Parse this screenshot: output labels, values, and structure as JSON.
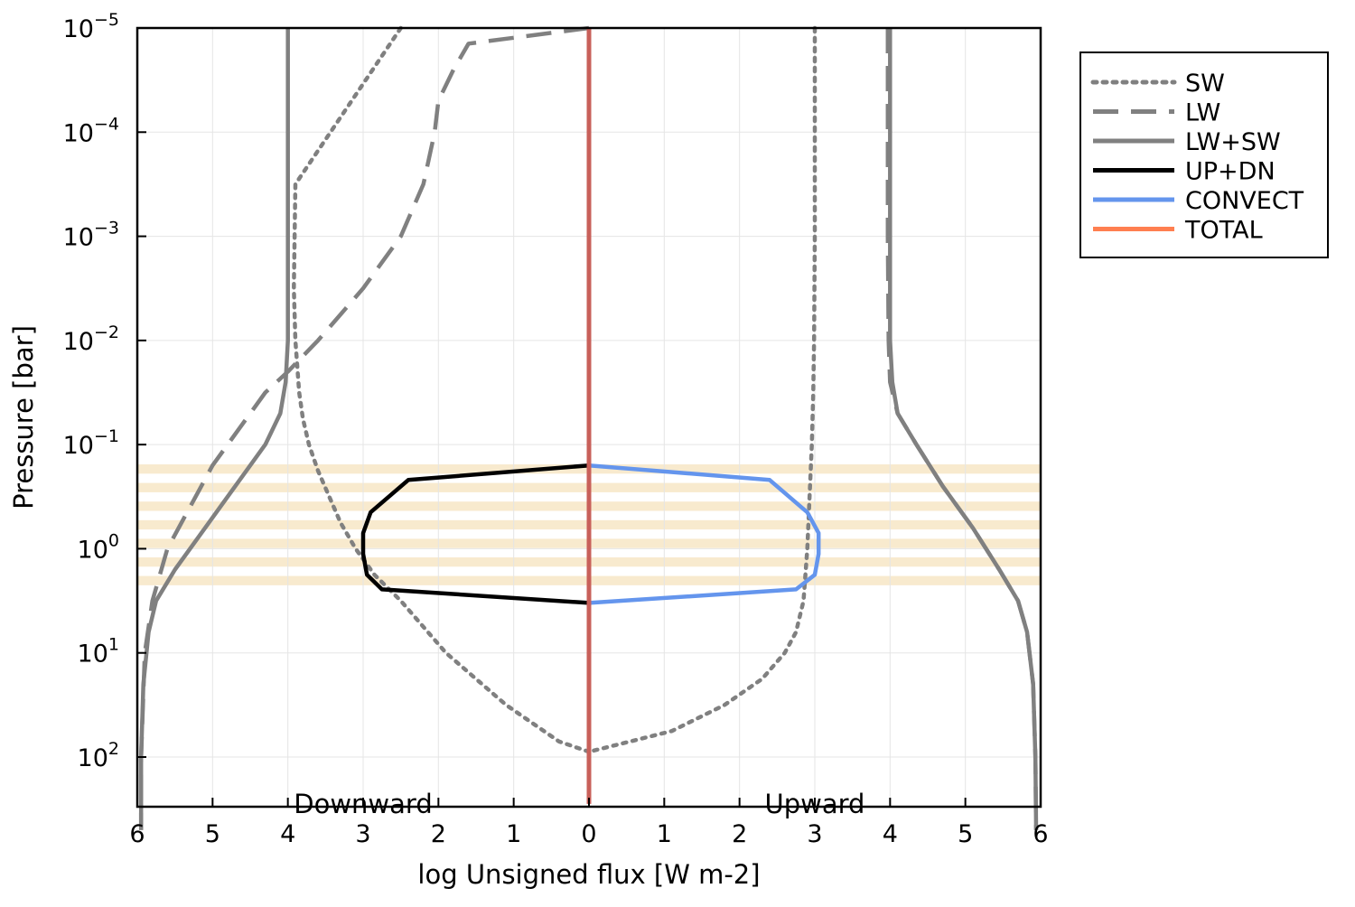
{
  "chart_data": {
    "type": "line",
    "xlabel": "log Unsigned flux [W m-2]",
    "ylabel": "Pressure [bar]",
    "x_scale": "signed-log (downward fluxes plotted to the left of 0, upward fluxes to the right)",
    "y_scale": "log, inverted",
    "xlim": [
      -6,
      6
    ],
    "ylim_bar": [
      1e-05,
      300
    ],
    "x_tick_labels": [
      "6",
      "5",
      "4",
      "3",
      "2",
      "1",
      "0",
      "1",
      "2",
      "3",
      "4",
      "5",
      "6"
    ],
    "x_tick_values": [
      -6,
      -5,
      -4,
      -3,
      -2,
      -1,
      0,
      1,
      2,
      3,
      4,
      5,
      6
    ],
    "y_ticks": [
      {
        "base": "10",
        "exp": "−5",
        "logp": -5
      },
      {
        "base": "10",
        "exp": "−4",
        "logp": -4
      },
      {
        "base": "10",
        "exp": "−3",
        "logp": -3
      },
      {
        "base": "10",
        "exp": "−2",
        "logp": -2
      },
      {
        "base": "10",
        "exp": "−1",
        "logp": -1
      },
      {
        "base": "10",
        "exp": "0",
        "logp": 0
      },
      {
        "base": "10",
        "exp": "1",
        "logp": 1
      },
      {
        "base": "10",
        "exp": "2",
        "logp": 2
      }
    ],
    "annotations": [
      {
        "text": "Downward",
        "x": -3.0,
        "logp": 2.45
      },
      {
        "text": "Upward",
        "x": 3.0,
        "logp": 2.45
      }
    ],
    "grid": true,
    "legend_position": "outside-top-right",
    "convective_band": {
      "logp_range": [
        -0.81,
        0.44
      ],
      "color": "#f5deb3"
    },
    "series": [
      {
        "name": "SW",
        "style": "dotted",
        "color": "#808080",
        "x": [
          -2.5,
          -3.9,
          -3.92,
          -3.9,
          -3.85,
          -3.8,
          -3.72,
          -3.6,
          -3.45,
          -3.3,
          -3.1,
          -2.85,
          -2.5,
          -1.9,
          -1.1,
          -0.4,
          0.0
        ],
        "logp": [
          -5,
          -3.5,
          -2.5,
          -2.0,
          -1.5,
          -1.25,
          -1.0,
          -0.75,
          -0.5,
          -0.25,
          0.0,
          0.25,
          0.5,
          1.0,
          1.5,
          1.85,
          1.95
        ],
        "x_upward": [
          3.0,
          3.0,
          2.99,
          2.98,
          2.96,
          2.93,
          2.9,
          2.85,
          2.75,
          2.6,
          2.3,
          1.8,
          1.1,
          0.0
        ],
        "logp_upward": [
          -5,
          -3.0,
          -2.0,
          -1.5,
          -1.0,
          -0.5,
          0.0,
          0.5,
          0.8,
          1.0,
          1.25,
          1.5,
          1.75,
          1.95
        ]
      },
      {
        "name": "LW",
        "style": "dashed",
        "color": "#808080",
        "x": [
          0.0,
          -1.6,
          -1.8,
          -2.0,
          -2.05,
          -2.2,
          -2.5,
          -3.0,
          -3.6,
          -4.0,
          -4.3,
          -4.6,
          -5.0,
          -5.3,
          -5.6,
          -5.8,
          -5.9,
          -5.95,
          -5.95
        ],
        "logp": [
          -5,
          -4.85,
          -4.6,
          -4.3,
          -4.0,
          -3.5,
          -3.0,
          -2.5,
          -2.0,
          -1.7,
          -1.5,
          -1.2,
          -0.8,
          -0.4,
          0.0,
          0.5,
          1.0,
          2.0,
          2.7
        ],
        "x_upward": [
          3.97,
          3.97,
          3.98,
          4.0,
          4.1,
          4.35,
          4.7,
          5.1,
          5.45,
          5.7,
          5.82,
          5.9,
          5.93,
          5.94
        ],
        "logp_upward": [
          -5,
          -3.0,
          -2.0,
          -1.6,
          -1.3,
          -1.0,
          -0.6,
          -0.2,
          0.2,
          0.5,
          0.8,
          1.3,
          2.0,
          2.7
        ]
      },
      {
        "name": "LW+SW",
        "style": "solid",
        "color": "#808080",
        "x": [
          -4.0,
          -4.0,
          -4.0,
          -4.03,
          -4.1,
          -4.3,
          -4.7,
          -5.1,
          -5.5,
          -5.75,
          -5.85,
          -5.92,
          -5.95,
          -5.95
        ],
        "logp": [
          -5,
          -3.0,
          -2.0,
          -1.6,
          -1.3,
          -1.0,
          -0.6,
          -0.2,
          0.2,
          0.5,
          0.8,
          1.3,
          2.0,
          2.7
        ],
        "x_upward": [
          4.0,
          4.0,
          4.0,
          4.03,
          4.1,
          4.35,
          4.7,
          5.1,
          5.45,
          5.7,
          5.82,
          5.9,
          5.93,
          5.94
        ],
        "logp_upward": [
          -5,
          -3.0,
          -2.0,
          -1.6,
          -1.3,
          -1.0,
          -0.6,
          -0.2,
          0.2,
          0.5,
          0.8,
          1.3,
          2.0,
          2.7
        ]
      },
      {
        "name": "UP+DN",
        "style": "solid",
        "color": "#000000",
        "x": [
          0.0,
          -2.4,
          -2.9,
          -3.0,
          -3.0,
          -2.95,
          -2.75,
          0.0
        ],
        "logp": [
          -0.8,
          -0.66,
          -0.35,
          -0.15,
          0.05,
          0.25,
          0.39,
          0.52
        ]
      },
      {
        "name": "CONVECT",
        "style": "solid",
        "color": "#6495ed",
        "x": [
          0.0,
          2.4,
          2.9,
          3.05,
          3.05,
          3.0,
          2.75,
          0.0
        ],
        "logp": [
          -0.8,
          -0.66,
          -0.35,
          -0.15,
          0.05,
          0.25,
          0.39,
          0.52
        ]
      },
      {
        "name": "TOTAL",
        "style": "solid",
        "color": "#ff7f50",
        "x": [
          0.0,
          0.0
        ],
        "logp": [
          -5,
          2.45
        ]
      }
    ]
  },
  "legend": [
    {
      "label": "SW",
      "style": "dotted",
      "color": "#808080"
    },
    {
      "label": "LW",
      "style": "dashed",
      "color": "#808080"
    },
    {
      "label": "LW+SW",
      "style": "solid",
      "color": "#808080"
    },
    {
      "label": "UP+DN",
      "style": "solid",
      "color": "#000000"
    },
    {
      "label": "CONVECT",
      "style": "solid",
      "color": "#6495ed"
    },
    {
      "label": "TOTAL",
      "style": "solid",
      "color": "#ff7f50"
    }
  ]
}
